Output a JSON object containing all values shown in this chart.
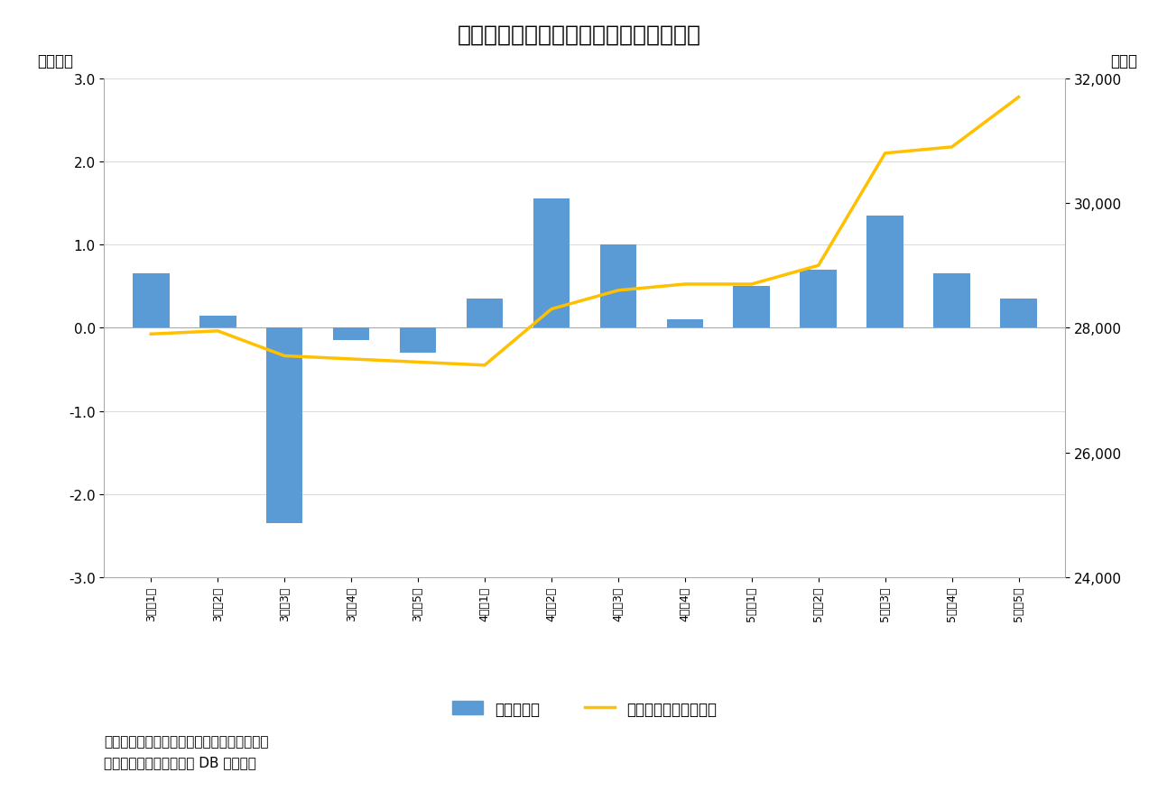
{
  "title": "図表２　海外投賄家は９週連続買い越し",
  "categories": [
    "3月\n㇗1週",
    "3月\n㇗2週",
    "3月\n㇗3週",
    "3月\n㇗4週",
    "3月\n㇗5週",
    "4月\n㇗1週",
    "4月\n㇗2週",
    "4月\n㇗3週",
    "4月\n㇗4週",
    "5月\n㇗1週",
    "5月\n㇗2週",
    "5月\n㇗3週",
    "5月\n㇗4週",
    "5月\n㇗5週"
  ],
  "categories_reading": [
    "3月㇗1週",
    "3月㇗2週",
    "3月㇗3週",
    "3月㇗4週",
    "3月㇗5週",
    "4月㇗1週",
    "4月㇗2週",
    "4月㇗3週",
    "4月㇗4週",
    "5月㇗1週",
    "5月㇗2週",
    "5月㇗3週",
    "5月㇗4週",
    "5月㇗5週"
  ],
  "bar_values": [
    0.65,
    0.15,
    -2.35,
    -0.15,
    -0.3,
    0.35,
    1.55,
    1.0,
    0.1,
    0.5,
    0.7,
    1.35,
    0.65,
    0.35
  ],
  "line_values": [
    27900,
    27950,
    27550,
    27500,
    27450,
    27400,
    28300,
    28600,
    28700,
    28700,
    29000,
    30800,
    30900,
    31700
  ],
  "bar_color": "#5b9bd5",
  "line_color": "#FFC000",
  "left_ylabel": "（兆円）",
  "right_ylabel": "（円）",
  "ylim_left": [
    -3.0,
    3.0
  ],
  "ylim_right": [
    24000,
    32000
  ],
  "left_yticks": [
    -3.0,
    -2.0,
    -1.0,
    0.0,
    1.0,
    2.0,
    3.0
  ],
  "right_yticks": [
    24000,
    26000,
    28000,
    30000,
    32000
  ],
  "legend_bar": "海外投賄家",
  "legend_line": "日経平均株価（右軸）",
  "note1": "（注）海外投賄家の現物と先物の合計、週次",
  "note2": "（資料）ニッセイ基础研 DB から作成",
  "background_color": "#ffffff",
  "title_fontsize": 18,
  "tick_fontsize": 11,
  "label_fontsize": 12,
  "note_fontsize": 11
}
